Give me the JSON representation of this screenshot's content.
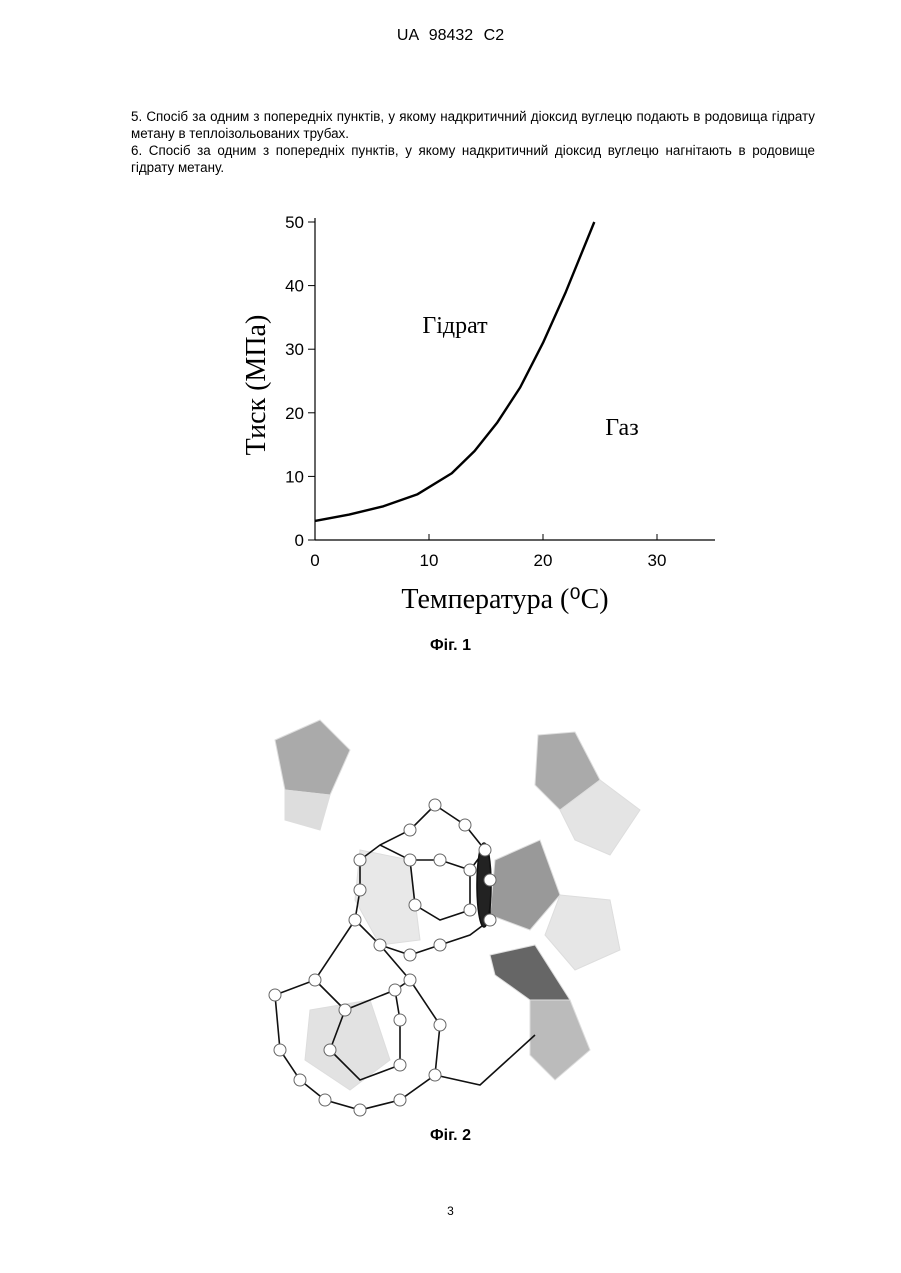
{
  "header": "UA 98432 C2",
  "claims": [
    "5. Спосіб за одним з попередніх пунктів, у якому надкритичний діоксид вуглецю подають в родовища гідрату метану в теплоізольованих трубах.",
    "6. Спосіб за одним з попередніх пунктів, у якому надкритичний діоксид вуглецю нагнітають в родовище гідрату метану."
  ],
  "chart_data": {
    "type": "line",
    "x_label": "Температура (⁰C)",
    "y_label": "Тиск (МПа)",
    "annotations": [
      "Гідрат",
      "Газ"
    ],
    "x": [
      0,
      3,
      6,
      9,
      12,
      14,
      16,
      18,
      20,
      22,
      24.5
    ],
    "series": [
      {
        "name": "",
        "color": "#000000",
        "values": [
          3,
          4,
          5.3,
          7.2,
          10.5,
          14,
          18.5,
          24,
          31,
          39,
          50
        ]
      }
    ],
    "xlim": [
      0,
      35
    ],
    "xticks": [
      0,
      10,
      20,
      30
    ],
    "ylim": [
      0,
      50
    ],
    "yticks": [
      0,
      10,
      20,
      30,
      40,
      50
    ]
  },
  "figures": [
    "Фіг. 1",
    "Фіг. 2"
  ],
  "page_number": "3"
}
